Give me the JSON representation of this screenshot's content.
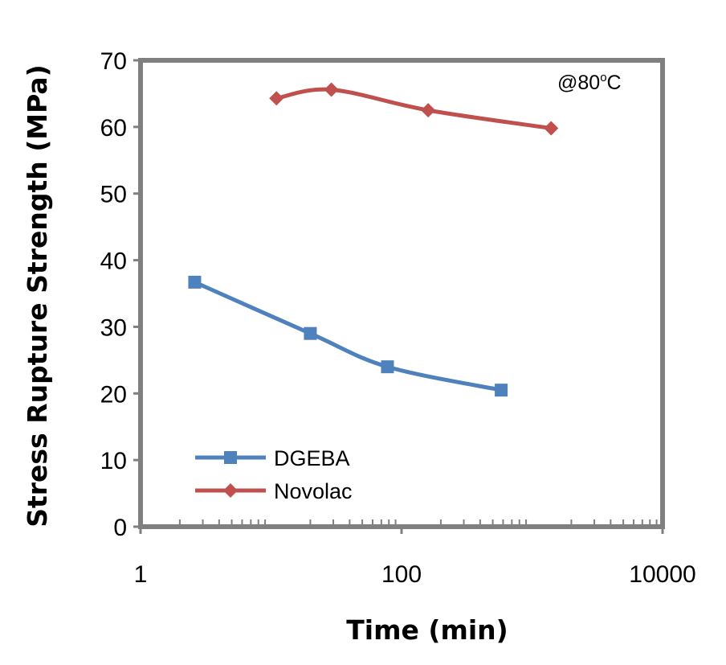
{
  "chart_data": {
    "type": "line",
    "title": "",
    "xlabel": "Time (min)",
    "ylabel": "Stress Rupture Strength (MPa)",
    "x_scale": "log",
    "xlim": [
      1,
      10000
    ],
    "ylim": [
      0,
      70
    ],
    "x_ticks": [
      {
        "value": 1,
        "label": "1"
      },
      {
        "value": 100,
        "label": "100"
      },
      {
        "value": 10000,
        "label": "10000"
      }
    ],
    "y_ticks": [
      {
        "value": 0,
        "label": "0"
      },
      {
        "value": 10,
        "label": "10"
      },
      {
        "value": 20,
        "label": "20"
      },
      {
        "value": 30,
        "label": "30"
      },
      {
        "value": 40,
        "label": "40"
      },
      {
        "value": 50,
        "label": "50"
      },
      {
        "value": 60,
        "label": "60"
      },
      {
        "value": 70,
        "label": "70"
      }
    ],
    "grid": false,
    "legend_position": "bottom-left",
    "annotation": {
      "text": "@80",
      "superscript": "o",
      "suffix": "C"
    },
    "series": [
      {
        "name": "DGEBA",
        "color": "#4F81BD",
        "marker": "square",
        "points": [
          {
            "x": 2.6,
            "y": 36.7
          },
          {
            "x": 20,
            "y": 29.0
          },
          {
            "x": 78,
            "y": 24.0
          },
          {
            "x": 580,
            "y": 20.5
          }
        ]
      },
      {
        "name": "Novolac",
        "color": "#C0504D",
        "marker": "diamond",
        "points": [
          {
            "x": 11,
            "y": 64.3
          },
          {
            "x": 29,
            "y": 65.6
          },
          {
            "x": 160,
            "y": 62.5
          },
          {
            "x": 1400,
            "y": 59.8
          }
        ]
      }
    ]
  }
}
